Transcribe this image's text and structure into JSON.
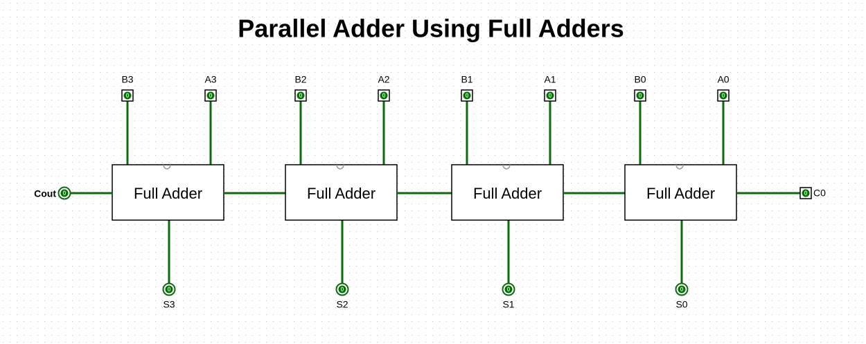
{
  "title": "Parallel Adder Using Full Adders",
  "adders": [
    {
      "label": "Full Adder",
      "a": {
        "label": "A3",
        "value": "0"
      },
      "b": {
        "label": "B3",
        "value": "0"
      },
      "sum": {
        "label": "S3",
        "value": "0"
      }
    },
    {
      "label": "Full Adder",
      "a": {
        "label": "A2",
        "value": "0"
      },
      "b": {
        "label": "B2",
        "value": "0"
      },
      "sum": {
        "label": "S2",
        "value": "0"
      }
    },
    {
      "label": "Full Adder",
      "a": {
        "label": "A1",
        "value": "0"
      },
      "b": {
        "label": "B1",
        "value": "0"
      },
      "sum": {
        "label": "S1",
        "value": "0"
      }
    },
    {
      "label": "Full Adder",
      "a": {
        "label": "A0",
        "value": "0"
      },
      "b": {
        "label": "B0",
        "value": "0"
      },
      "sum": {
        "label": "S0",
        "value": "0"
      }
    }
  ],
  "carry_in": {
    "label": "C0",
    "value": "0"
  },
  "carry_out": {
    "label": "Cout",
    "value": "0"
  }
}
